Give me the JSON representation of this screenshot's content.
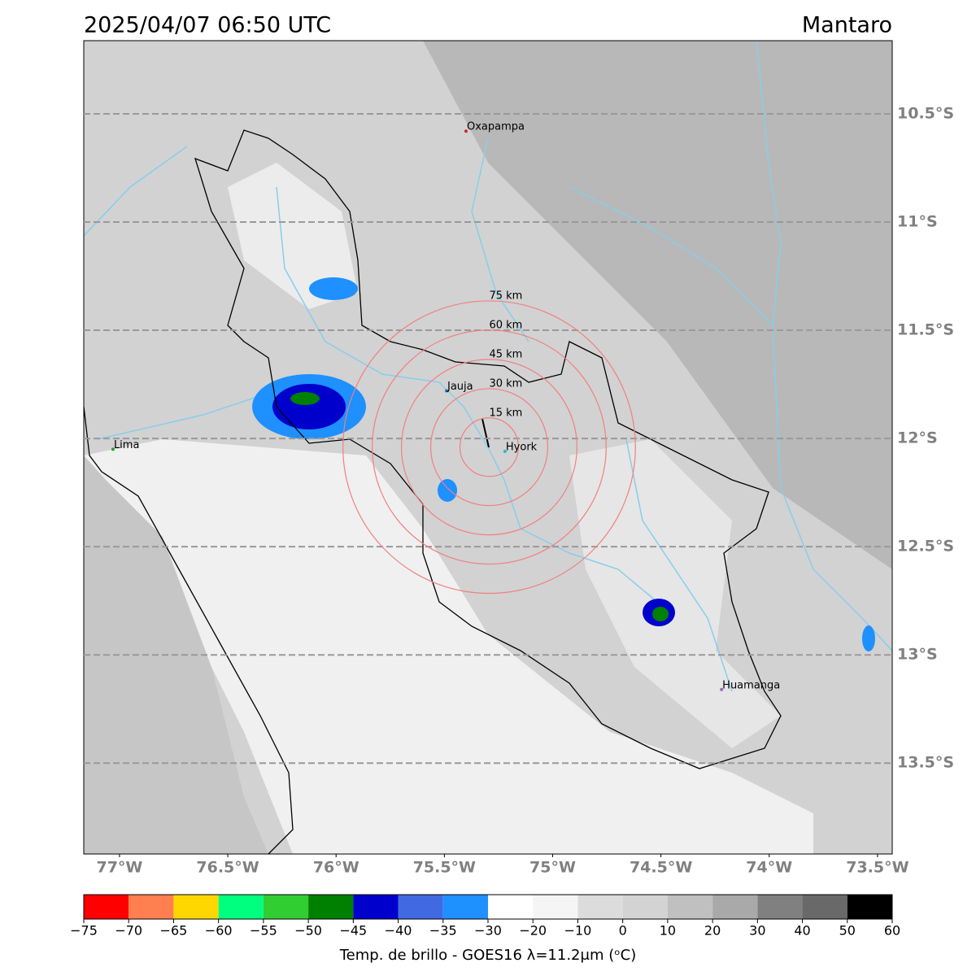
{
  "header": {
    "title": "2025/04/07 06:50 UTC",
    "region": "Mantaro"
  },
  "map": {
    "xlim": [
      -77.165,
      -73.432
    ],
    "ylim": [
      -13.92,
      -10.162
    ],
    "grid": true,
    "xticks": [
      {
        "value": -77,
        "label": "77°W"
      },
      {
        "value": -76.5,
        "label": "76.5°W"
      },
      {
        "value": -76,
        "label": "76°W"
      },
      {
        "value": -75.5,
        "label": "75.5°W"
      },
      {
        "value": -75,
        "label": "75°W"
      },
      {
        "value": -74.5,
        "label": "74.5°W"
      },
      {
        "value": -74,
        "label": "74°W"
      },
      {
        "value": -73.5,
        "label": "73.5°W"
      }
    ],
    "yticks": [
      {
        "value": -10.5,
        "label": "10.5°S"
      },
      {
        "value": -11,
        "label": "11°S"
      },
      {
        "value": -11.5,
        "label": "11.5°S"
      },
      {
        "value": -12,
        "label": "12°S"
      },
      {
        "value": -12.5,
        "label": "12.5°S"
      },
      {
        "value": -13,
        "label": "13°S"
      },
      {
        "value": -13.5,
        "label": "13.5°S"
      }
    ],
    "places": [
      {
        "name": "Oxapampa",
        "lon": -75.4,
        "lat": -10.58,
        "color": "#d62728"
      },
      {
        "name": "Jauja",
        "lon": -75.49,
        "lat": -11.78,
        "color": "#1f77b4"
      },
      {
        "name": "Lima",
        "lon": -77.03,
        "lat": -12.05,
        "color": "#2ca02c"
      },
      {
        "name": "Hyork",
        "lon": -75.22,
        "lat": -12.06,
        "color": "#17becf"
      },
      {
        "name": "Huamanga",
        "lon": -74.22,
        "lat": -13.16,
        "color": "#9467bd"
      }
    ],
    "radar": {
      "lon": -75.293,
      "lat": -12.04,
      "ring_color": "#f08080",
      "rings": [
        {
          "radius_km": 15,
          "label": "15 km"
        },
        {
          "radius_km": 30,
          "label": "30 km"
        },
        {
          "radius_km": 45,
          "label": "45 km"
        },
        {
          "radius_km": 60,
          "label": "60 km"
        },
        {
          "radius_km": 75,
          "label": "75 km"
        }
      ]
    }
  },
  "colorbar": {
    "bounds": [
      {
        "value": -75,
        "label": "−75"
      },
      {
        "value": -70,
        "label": "−70"
      },
      {
        "value": -65,
        "label": "−65"
      },
      {
        "value": -60,
        "label": "−60"
      },
      {
        "value": -55,
        "label": "−55"
      },
      {
        "value": -50,
        "label": "−50"
      },
      {
        "value": -45,
        "label": "−45"
      },
      {
        "value": -40,
        "label": "−40"
      },
      {
        "value": -35,
        "label": "−35"
      },
      {
        "value": -30,
        "label": "−30"
      },
      {
        "value": -20,
        "label": "−20"
      },
      {
        "value": -10,
        "label": "−10"
      },
      0,
      10,
      20,
      30,
      40,
      50,
      60
    ],
    "colors": [
      "#ff0000",
      "#ff7f50",
      "#ffd700",
      "#00ff7f",
      "#32cd32",
      "#008000",
      "#0000cd",
      "#4169e1",
      "#1e90ff",
      "#ffffff",
      "#f5f5f5",
      "#dcdcdc",
      "#d3d3d3",
      "#c0c0c0",
      "#a9a9a9",
      "#808080",
      "#696969",
      "#000000"
    ],
    "label": "Temp. de brillo - GOES16 λ=11.2μm (ᵒC)"
  }
}
